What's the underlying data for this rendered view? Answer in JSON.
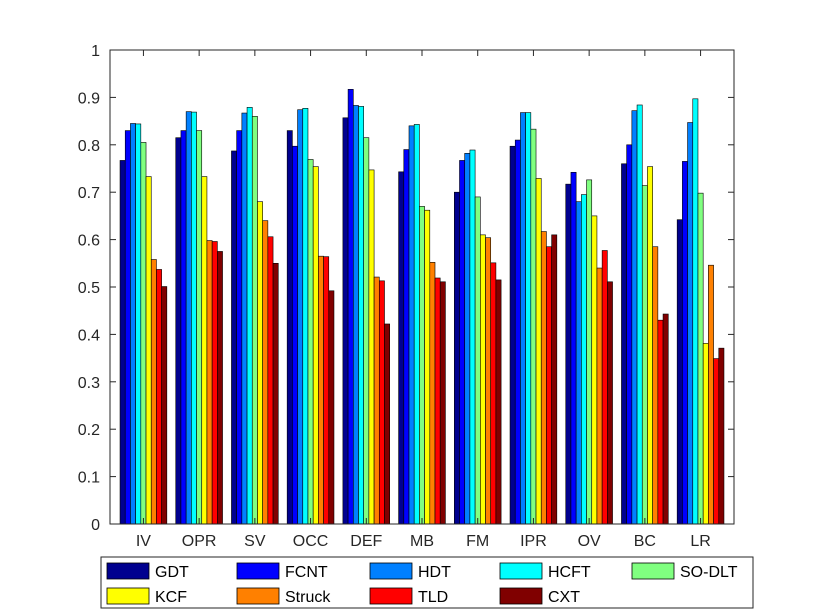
{
  "chart_data": {
    "type": "bar",
    "title": "",
    "xlabel": "",
    "ylabel": "",
    "ylim": [
      0,
      1
    ],
    "yticks": [
      "0",
      "0.1",
      "0.2",
      "0.3",
      "0.4",
      "0.5",
      "0.6",
      "0.7",
      "0.8",
      "0.9",
      "1"
    ],
    "grid": false,
    "legend_position": "bottom",
    "categories": [
      "IV",
      "OPR",
      "SV",
      "OCC",
      "DEF",
      "MB",
      "FM",
      "IPR",
      "OV",
      "BC",
      "LR"
    ],
    "series": [
      {
        "name": "GDT",
        "color": "#00008f",
        "values": [
          0.767,
          0.815,
          0.787,
          0.83,
          0.857,
          0.743,
          0.7,
          0.797,
          0.717,
          0.76,
          0.642
        ]
      },
      {
        "name": "FCNT",
        "color": "#0000ff",
        "values": [
          0.83,
          0.83,
          0.83,
          0.797,
          0.917,
          0.79,
          0.767,
          0.81,
          0.742,
          0.8,
          0.765
        ]
      },
      {
        "name": "HDT",
        "color": "#0080ff",
        "values": [
          0.845,
          0.87,
          0.867,
          0.874,
          0.883,
          0.84,
          0.782,
          0.868,
          0.68,
          0.872,
          0.847
        ]
      },
      {
        "name": "HCFT",
        "color": "#00ffff",
        "values": [
          0.844,
          0.869,
          0.879,
          0.877,
          0.881,
          0.843,
          0.789,
          0.868,
          0.695,
          0.884,
          0.897
        ]
      },
      {
        "name": "SO-DLT",
        "color": "#80ff80",
        "values": [
          0.805,
          0.83,
          0.86,
          0.769,
          0.815,
          0.67,
          0.69,
          0.833,
          0.726,
          0.714,
          0.698
        ]
      },
      {
        "name": "KCF",
        "color": "#ffff00",
        "values": [
          0.733,
          0.733,
          0.68,
          0.754,
          0.747,
          0.662,
          0.61,
          0.729,
          0.65,
          0.754,
          0.381
        ]
      },
      {
        "name": "Struck",
        "color": "#ff8000",
        "values": [
          0.558,
          0.598,
          0.64,
          0.565,
          0.521,
          0.552,
          0.604,
          0.617,
          0.54,
          0.585,
          0.546
        ]
      },
      {
        "name": "TLD",
        "color": "#ff0000",
        "values": [
          0.537,
          0.596,
          0.606,
          0.564,
          0.513,
          0.519,
          0.551,
          0.585,
          0.577,
          0.43,
          0.349
        ]
      },
      {
        "name": "CXT",
        "color": "#800000",
        "values": [
          0.501,
          0.575,
          0.55,
          0.492,
          0.422,
          0.511,
          0.515,
          0.61,
          0.511,
          0.443,
          0.371
        ]
      }
    ]
  }
}
